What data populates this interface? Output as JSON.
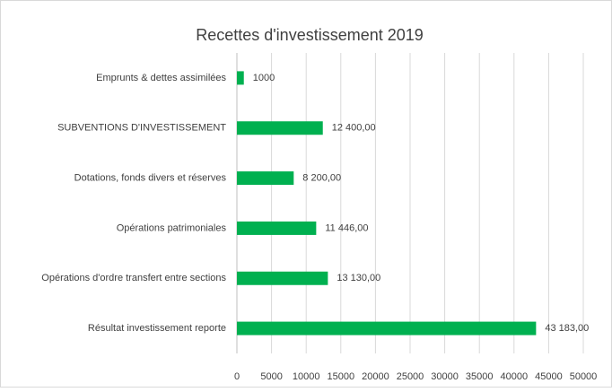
{
  "chart_data": {
    "type": "bar",
    "orientation": "horizontal",
    "title": "Recettes d'investissement 2019",
    "categories": [
      "Emprunts & dettes assimilées",
      "SUBVENTIONS D'INVESTISSEMENT",
      "Dotations, fonds divers et réserves",
      "Opérations patrimoniales",
      "Opérations d'ordre transfert entre sections",
      "Résultat investissement reporte"
    ],
    "values": [
      1000,
      12400,
      8200,
      11446,
      13130,
      43183
    ],
    "value_labels": [
      "1000",
      "12 400,00",
      "8 200,00",
      "11 446,00",
      "13 130,00",
      "43 183,00"
    ],
    "color": "#00b050",
    "xlim": [
      0,
      50000
    ],
    "xticks": [
      0,
      5000,
      10000,
      15000,
      20000,
      25000,
      30000,
      35000,
      40000,
      45000,
      50000
    ],
    "grid": true
  }
}
